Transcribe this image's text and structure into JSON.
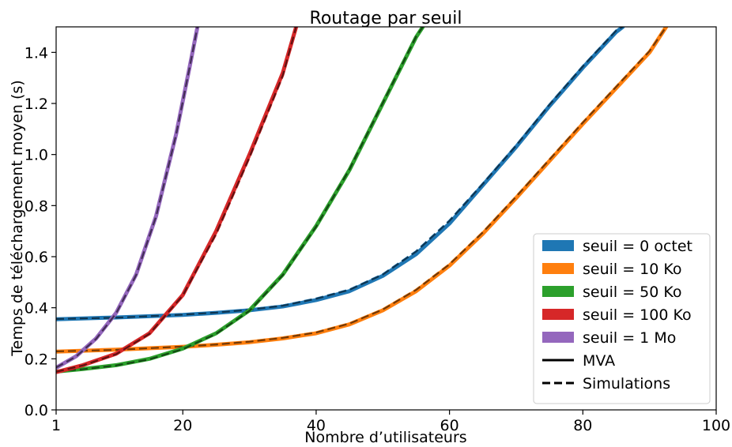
{
  "chart_data": {
    "type": "line",
    "title": "Routage par seuil",
    "xlabel": "Nombre d’utilisateurs",
    "ylabel": "Temps de téléchargement moyen (s)",
    "xlim": [
      1,
      100
    ],
    "ylim": [
      0.0,
      1.5
    ],
    "xticks": [
      1,
      20,
      40,
      60,
      80,
      100
    ],
    "xtick_labels": [
      "1",
      "20",
      "40",
      "60",
      "80",
      "100"
    ],
    "yticks": [
      0.0,
      0.2,
      0.4,
      0.6,
      0.8,
      1.0,
      1.2,
      1.4
    ],
    "ytick_labels": [
      "0.0",
      "0.2",
      "0.4",
      "0.6",
      "0.8",
      "1.0",
      "1.2",
      "1.4"
    ],
    "grid": false,
    "legend_position": "lower-right",
    "series": [
      {
        "name": "seuil = 0 octet",
        "color": "#1f77b4",
        "x": [
          1,
          10,
          20,
          25,
          30,
          35,
          40,
          45,
          50,
          55,
          60,
          65,
          70,
          75,
          80,
          85,
          86
        ],
        "mva": [
          0.355,
          0.362,
          0.372,
          0.38,
          0.39,
          0.405,
          0.43,
          0.465,
          0.525,
          0.61,
          0.73,
          0.88,
          1.03,
          1.19,
          1.34,
          1.48,
          1.5
        ],
        "sim": [
          0.356,
          0.361,
          0.373,
          0.381,
          0.392,
          0.408,
          0.435,
          0.47,
          0.53,
          0.62,
          0.74,
          0.885,
          1.035,
          1.195,
          1.345,
          1.485,
          1.5
        ]
      },
      {
        "name": "seuil = 10 Ko",
        "color": "#ff7f0e",
        "x": [
          1,
          10,
          20,
          25,
          30,
          35,
          40,
          45,
          50,
          55,
          60,
          65,
          70,
          75,
          80,
          85,
          90,
          92.5
        ],
        "mva": [
          0.228,
          0.236,
          0.247,
          0.255,
          0.265,
          0.28,
          0.3,
          0.335,
          0.39,
          0.465,
          0.565,
          0.69,
          0.83,
          0.975,
          1.12,
          1.26,
          1.4,
          1.5
        ],
        "sim": [
          0.229,
          0.235,
          0.248,
          0.256,
          0.267,
          0.282,
          0.303,
          0.338,
          0.393,
          0.47,
          0.57,
          0.695,
          0.835,
          0.98,
          1.125,
          1.265,
          1.405,
          1.5
        ]
      },
      {
        "name": "seuil = 50 Ko",
        "color": "#2ca02c",
        "x": [
          1,
          5,
          10,
          15,
          20,
          25,
          30,
          35,
          40,
          45,
          50,
          55,
          56
        ],
        "mva": [
          0.15,
          0.16,
          0.175,
          0.2,
          0.24,
          0.3,
          0.39,
          0.53,
          0.72,
          0.94,
          1.2,
          1.46,
          1.5
        ],
        "sim": [
          0.151,
          0.159,
          0.174,
          0.198,
          0.238,
          0.298,
          0.388,
          0.528,
          0.718,
          0.942,
          1.202,
          1.462,
          1.5
        ]
      },
      {
        "name": "seuil = 100 Ko",
        "color": "#d62728",
        "x": [
          1,
          5,
          10,
          15,
          20,
          25,
          30,
          35,
          37
        ],
        "mva": [
          0.148,
          0.175,
          0.22,
          0.3,
          0.45,
          0.7,
          1.0,
          1.32,
          1.5
        ],
        "sim": [
          0.149,
          0.174,
          0.218,
          0.298,
          0.448,
          0.69,
          0.99,
          1.31,
          1.5
        ]
      },
      {
        "name": "seuil = 1 Mo",
        "color": "#9467bd",
        "x": [
          1,
          4,
          7,
          10,
          13,
          16,
          19,
          21,
          22.2
        ],
        "mva": [
          0.165,
          0.21,
          0.28,
          0.38,
          0.53,
          0.76,
          1.08,
          1.34,
          1.5
        ],
        "sim": [
          0.166,
          0.209,
          0.278,
          0.378,
          0.528,
          0.758,
          1.078,
          1.338,
          1.5
        ]
      }
    ],
    "style_legend": [
      {
        "label": "MVA",
        "style": "solid"
      },
      {
        "label": "Simulations",
        "style": "dashed"
      }
    ]
  }
}
